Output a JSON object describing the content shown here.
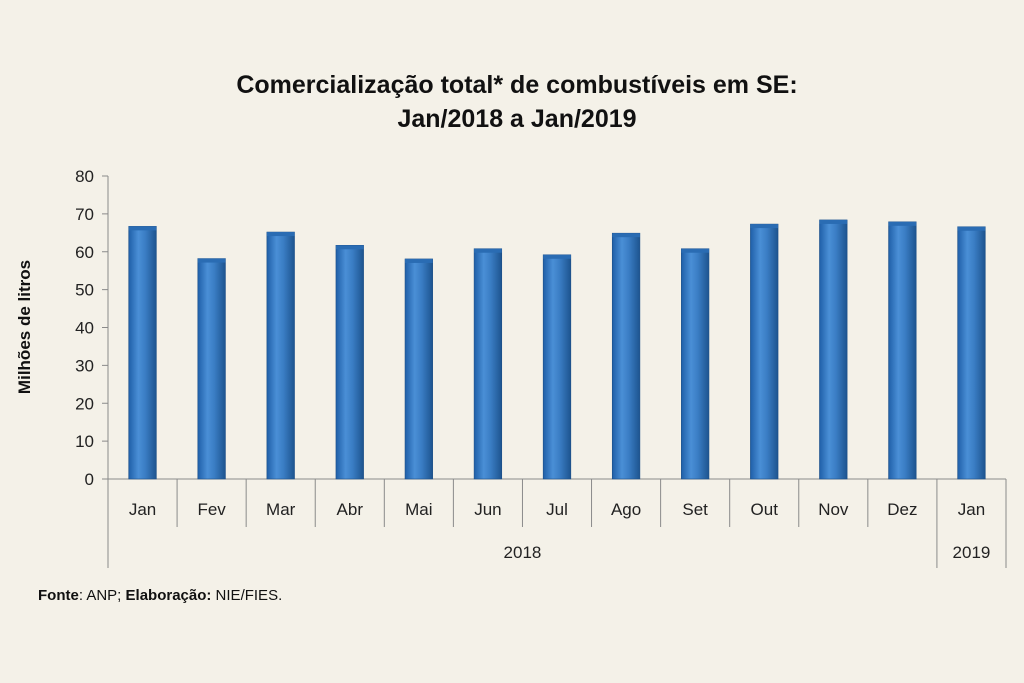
{
  "chart_data": {
    "type": "bar",
    "title_line1": "Comercialização total* de combustíveis em SE:",
    "title_line2": "Jan/2018 a Jan/2019",
    "ylabel": "Milhões de litros",
    "xlabel": "",
    "ylim": [
      0,
      80
    ],
    "yticks": [
      "0",
      "10",
      "20",
      "30",
      "40",
      "50",
      "60",
      "70",
      "80"
    ],
    "categories": [
      "Jan",
      "Fev",
      "Mar",
      "Abr",
      "Mai",
      "Jun",
      "Jul",
      "Ago",
      "Set",
      "Out",
      "Nov",
      "Dez",
      "Jan"
    ],
    "groups": [
      {
        "label": "2018",
        "count": 12
      },
      {
        "label": "2019",
        "count": 1
      }
    ],
    "values": [
      66.7,
      58.2,
      65.2,
      61.7,
      58.1,
      60.8,
      59.2,
      64.9,
      60.8,
      67.3,
      68.4,
      67.9,
      66.6
    ],
    "grid": false,
    "bar_color": "#3a7dc4"
  },
  "footer": {
    "source_label": "Fonte",
    "source_text": ": ANP; ",
    "elab_label": "Elaboração:",
    "elab_text": " NIE/FIES."
  }
}
